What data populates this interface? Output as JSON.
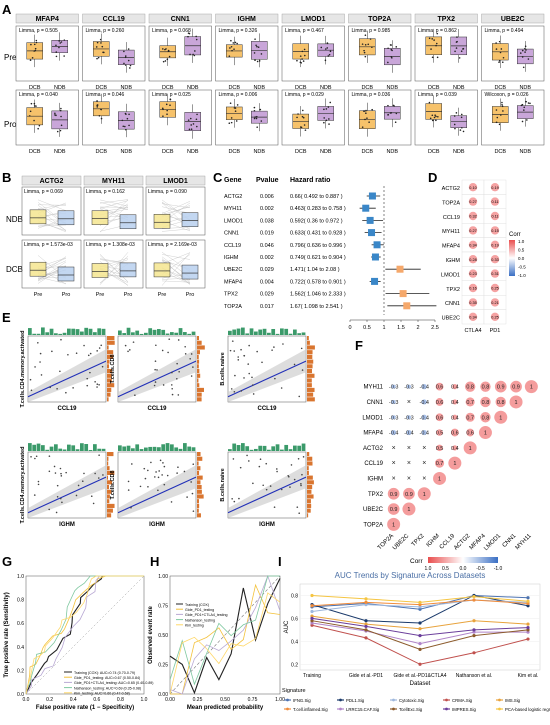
{
  "panel_letters": [
    "A",
    "B",
    "C",
    "D",
    "E",
    "F",
    "G",
    "H",
    "I"
  ],
  "panelA": {
    "genes": [
      "MFAP4",
      "CCL19",
      "CNN1",
      "IGHM",
      "LMOD1",
      "TOP2A",
      "TPX2",
      "UBE2C"
    ],
    "pre_label": "Pre",
    "pro_label": "Pro",
    "y_axis": "log₂(FPKM+1)",
    "groups": [
      "DCB",
      "NDB"
    ],
    "pre_stats": [
      "Limma, p = 0.505",
      "Limma, p = 0.260",
      "Limma, p = 0.068",
      "Limma, p = 0.326",
      "Limma, p = 0.467",
      "Limma, p = 0.985",
      "Limma, p = 0.862",
      "Limma, p = 0.494"
    ],
    "pro_stats": [
      "Limma, p = 0.040",
      "Limma, p = 0.046",
      "Limma, p = 0.025",
      "Limma, p = 0.006",
      "Limma, p = 0.029",
      "Limma, p = 0.036",
      "Limma, p = 0.039",
      "Wilcoxon, p = 0.026"
    ]
  },
  "panelB": {
    "genes": [
      "ACTG2",
      "MYH11",
      "LMOD1"
    ],
    "ndb_label": "NDB",
    "dcb_label": "DCB",
    "ndb_stats": [
      "Limma, p = 0.069",
      "Limma, p = 0.162",
      "Limma, p = 0.090"
    ],
    "dcb_stats": [
      "Limma, p = 1.573e-03",
      "Limma, p = 1.308e-03",
      "Limma, p = 2.169e-03"
    ],
    "groups": [
      "Pre",
      "Pro"
    ]
  },
  "panelC": {
    "headers": [
      "Gene",
      "Pvalue",
      "Hazard ratio"
    ],
    "rows": [
      {
        "gene": "ACTG2",
        "p": "0.006",
        "hr": "0.66( 0.492 to 0.887 )",
        "v": 0.66,
        "lo": 0.492,
        "hi": 0.887
      },
      {
        "gene": "MYH11",
        "p": "0.002",
        "hr": "0.463( 0.283 to 0.758 )",
        "v": 0.463,
        "lo": 0.283,
        "hi": 0.758
      },
      {
        "gene": "LMOD1",
        "p": "0.038",
        "hr": "0.592( 0.36 to 0.972 )",
        "v": 0.592,
        "lo": 0.36,
        "hi": 0.972
      },
      {
        "gene": "CNN1",
        "p": "0.019",
        "hr": "0.633( 0.431 to 0.928 )",
        "v": 0.633,
        "lo": 0.431,
        "hi": 0.928
      },
      {
        "gene": "CCL19",
        "p": "0.046",
        "hr": "0.796( 0.636 to 0.996 )",
        "v": 0.796,
        "lo": 0.636,
        "hi": 0.996
      },
      {
        "gene": "IGHM",
        "p": "0.002",
        "hr": "0.749( 0.621 to 0.904 )",
        "v": 0.749,
        "lo": 0.621,
        "hi": 0.904
      },
      {
        "gene": "UBE2C",
        "p": "0.029",
        "hr": "1.471( 1.04 to 2.08 )",
        "v": 1.471,
        "lo": 1.04,
        "hi": 2.08
      },
      {
        "gene": "MFAP4",
        "p": "0.004",
        "hr": "0.722( 0.578 to 0.901 )",
        "v": 0.722,
        "lo": 0.578,
        "hi": 0.901
      },
      {
        "gene": "TPX2",
        "p": "0.029",
        "hr": "1.562( 1.046 to 2.333 )",
        "v": 1.562,
        "lo": 1.046,
        "hi": 2.333
      },
      {
        "gene": "TOP2A",
        "p": "0.017",
        "hr": "1.67( 1.098 to 2.541 )",
        "v": 1.67,
        "lo": 1.098,
        "hi": 2.541
      }
    ],
    "axis_ticks": [
      "0",
      "0.5",
      "1",
      "1.5",
      "2",
      "2.5"
    ]
  },
  "panelD": {
    "genes": [
      "ACTG2",
      "TOP2A",
      "CCL19",
      "MYH11",
      "MFAP4",
      "IGHM",
      "LMOD1",
      "TPX2",
      "CNN1",
      "UBE2C"
    ],
    "cols": [
      "CTLA4",
      "PD1"
    ],
    "legend_title": "Corr",
    "legend_ticks": [
      "1.0",
      "0.5",
      "0.0",
      "-0.5",
      "-1.0"
    ]
  },
  "panelE": {
    "top_y": [
      "T.cells.CD4.memory.activated",
      "T.cells.CD8",
      "B.cells.naive"
    ],
    "top_x": "CCL19",
    "bottom_y": [
      "T.cells.CD4.memory.activated",
      "T.cells.CD8",
      "B.cells.naive"
    ],
    "bottom_x": "IGHM"
  },
  "panelF": {
    "rows": [
      "MYH11",
      "CNN1",
      "LMOD1",
      "MFAP4",
      "ACTG2",
      "CCL19",
      "IGHM",
      "TPX2",
      "UBE2C",
      "TOP2A"
    ],
    "cols": [
      "TOP2A",
      "UBE2C",
      "TPX2",
      "IGHM",
      "CCL19",
      "ACTG2",
      "MFAP4",
      "LMOD1",
      "CNN1",
      "MYH11"
    ],
    "cells": [
      [
        "-0.3",
        "-0.3",
        "-0.4",
        "0.6",
        "0.4",
        "0.8",
        "0.8",
        "0.9",
        "0.9",
        "1"
      ],
      [
        "-0.3",
        "×",
        "-0.4",
        "0.6",
        "0.4",
        "0.7",
        "0.8",
        "0.8",
        "1"
      ],
      [
        "-0.3",
        "-0.3",
        "-0.4",
        "0.6",
        "0.4",
        "0.7",
        "0.8",
        "1"
      ],
      [
        "-0.4",
        "-0.4",
        "-0.4",
        "0.5",
        "0.6",
        "0.6",
        "1"
      ],
      [
        "×",
        "×",
        "×",
        "0.5",
        "0.4",
        "1"
      ],
      [
        "×",
        "×",
        "×",
        "0.7",
        "1"
      ],
      [
        "×",
        "×",
        "×",
        "1"
      ],
      [
        "0.9",
        "0.9",
        "1"
      ],
      [
        "0.9",
        "1"
      ],
      [
        "1"
      ]
    ],
    "legend_title": "Corr",
    "legend_ticks": [
      "1.0",
      "0.5",
      "0.0",
      "-0.5",
      "-1.0"
    ]
  },
  "panelG": {
    "xlabel": "False positive rate (1 − Specificity)",
    "ylabel": "True positive rate (Sensitivity)",
    "legend": [
      {
        "name": "Training (COX): AUC=0.74 (0.70-0.79)",
        "color": "#222222"
      },
      {
        "name": "Gide_PD1_testing: AUC=0.67 (0.50-0.84)",
        "color": "#f3c23c"
      },
      {
        "name": "Gide_PD1+CTLA4_testing: AUC=0.65 (0.40-0.89)",
        "color": "#b9a9d4"
      },
      {
        "name": "Nathanson_testing: AUC=0.69 (0.35-0.98)",
        "color": "#7fc8a0"
      },
      {
        "name": "Kim_testing: AUC=0.60 (0.47-0.68)",
        "color": "#ffd86a"
      }
    ],
    "ticks": [
      "0.0",
      "0.2",
      "0.4",
      "0.6",
      "0.8",
      "1.0"
    ]
  },
  "panelH": {
    "xlabel": "Mean predicted probability",
    "ylabel": "Observed event rate",
    "legend": [
      "Training (COX)",
      "Gide_PD1_testing",
      "Gide_PD1+CTLA4_testing",
      "Nathanson_testing",
      "Kim_testing"
    ],
    "ticks": [
      "0.00",
      "0.25",
      "0.50",
      "0.75",
      "1.00"
    ]
  },
  "panelI": {
    "title": "AUC Trends by Signature Across Datasets",
    "xlabel": "Dataset",
    "ylabel": "AUC",
    "datasets": [
      "Training",
      "Gide et al.-PD1",
      "Gide et al.-PD1&CTLA4",
      "Nathanson et al.",
      "Kim et al."
    ],
    "yticks": [
      "0.2",
      "0.4",
      "0.6",
      "0.8"
    ],
    "legend_title": "Signature",
    "legend": [
      {
        "name": "IFNG.Sig",
        "color": "#4c72b0"
      },
      {
        "name": "PDL1.Sig",
        "color": "#1b3a6b"
      },
      {
        "name": "Cytotoxic.Sig",
        "color": "#9fb8dd"
      },
      {
        "name": "CRMA.Sig",
        "color": "#c0504d"
      },
      {
        "name": "IMS.Sig",
        "color": "#e8a33d"
      },
      {
        "name": "T.cell.inflamed.Sig",
        "color": "#f08c3b"
      },
      {
        "name": "LRRC15.CAF.Sig",
        "color": "#b084c8"
      },
      {
        "name": "TcellExc.Sig",
        "color": "#8b5a2b"
      },
      {
        "name": "IMPRES.Sig",
        "color": "#6a3d9a"
      },
      {
        "name": "PCA-based logistic regression",
        "color": "#f5c542"
      }
    ],
    "series": [
      {
        "name": "IFNG.Sig",
        "values": [
          0.7,
          0.73,
          0.68,
          0.8,
          0.78
        ]
      },
      {
        "name": "PDL1.Sig",
        "values": [
          0.72,
          0.58,
          0.56,
          0.8,
          0.71
        ]
      },
      {
        "name": "Cytotoxic.Sig",
        "values": [
          0.66,
          0.72,
          0.7,
          0.76,
          0.74
        ]
      },
      {
        "name": "CRMA.Sig",
        "values": [
          0.54,
          0.43,
          0.2,
          0.3,
          0.42
        ]
      },
      {
        "name": "IMS.Sig",
        "values": [
          0.62,
          0.55,
          0.51,
          0.58,
          0.55
        ]
      },
      {
        "name": "T.cell.inflamed.Sig",
        "values": [
          0.71,
          0.74,
          0.72,
          0.76,
          0.73
        ]
      },
      {
        "name": "LRRC15.CAF.Sig",
        "values": [
          0.56,
          0.49,
          0.38,
          0.48,
          0.48
        ]
      },
      {
        "name": "TcellExc.Sig",
        "values": [
          0.58,
          0.5,
          0.33,
          0.45,
          0.5
        ]
      },
      {
        "name": "IMPRES.Sig",
        "values": [
          0.6,
          0.53,
          0.45,
          0.5,
          0.52
        ]
      },
      {
        "name": "PCA-based logistic regression",
        "values": [
          0.8,
          0.77,
          0.74,
          0.79,
          0.75
        ]
      }
    ]
  }
}
